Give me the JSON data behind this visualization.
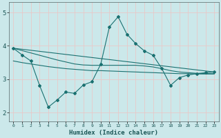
{
  "xlabel": "Humidex (Indice chaleur)",
  "xlim": [
    -0.5,
    23.5
  ],
  "ylim": [
    1.75,
    5.3
  ],
  "yticks": [
    2,
    3,
    4,
    5
  ],
  "xtick_labels": [
    "0",
    "1",
    "2",
    "3",
    "4",
    "5",
    "6",
    "7",
    "8",
    "9",
    "10",
    "11",
    "12",
    "13",
    "14",
    "15",
    "16",
    "17",
    "18",
    "19",
    "20",
    "21",
    "22",
    "23"
  ],
  "background_color": "#cbe8ea",
  "grid_color": "#e8c8c8",
  "line_color": "#1a7070",
  "curve1_x": [
    0,
    1,
    2,
    3,
    4,
    5,
    6,
    7,
    8,
    9,
    10,
    11,
    12,
    13,
    14,
    15,
    16,
    17,
    18,
    19,
    20,
    21,
    22,
    23
  ],
  "curve1_y": [
    3.93,
    3.73,
    3.55,
    2.82,
    2.17,
    2.38,
    2.62,
    2.58,
    2.83,
    2.93,
    3.45,
    4.57,
    4.87,
    4.35,
    4.07,
    3.85,
    3.72,
    3.32,
    2.82,
    3.05,
    3.13,
    3.17,
    3.2,
    3.22
  ],
  "curve2_x": [
    0,
    1,
    2,
    3,
    4,
    5,
    6,
    7,
    8,
    9,
    10,
    11,
    12,
    13,
    14,
    15,
    16,
    17,
    18,
    19,
    20,
    21,
    22,
    23
  ],
  "curve2_y": [
    3.93,
    3.86,
    3.79,
    3.72,
    3.65,
    3.58,
    3.52,
    3.46,
    3.43,
    3.42,
    3.42,
    3.42,
    3.42,
    3.42,
    3.42,
    3.4,
    3.37,
    3.32,
    3.26,
    3.22,
    3.2,
    3.18,
    3.17,
    3.17
  ],
  "curve3_x": [
    0,
    23
  ],
  "curve3_y": [
    3.93,
    3.22
  ],
  "curve4_x": [
    0,
    1,
    2,
    3,
    4,
    5,
    6,
    7,
    8,
    9,
    10,
    11,
    12,
    13,
    14,
    15,
    16,
    17,
    18,
    19,
    20,
    21,
    22,
    23
  ],
  "curve4_y": [
    3.55,
    3.5,
    3.46,
    3.42,
    3.38,
    3.35,
    3.32,
    3.3,
    3.28,
    3.26,
    3.26,
    3.25,
    3.24,
    3.23,
    3.22,
    3.21,
    3.2,
    3.19,
    3.18,
    3.17,
    3.17,
    3.16,
    3.16,
    3.16
  ]
}
